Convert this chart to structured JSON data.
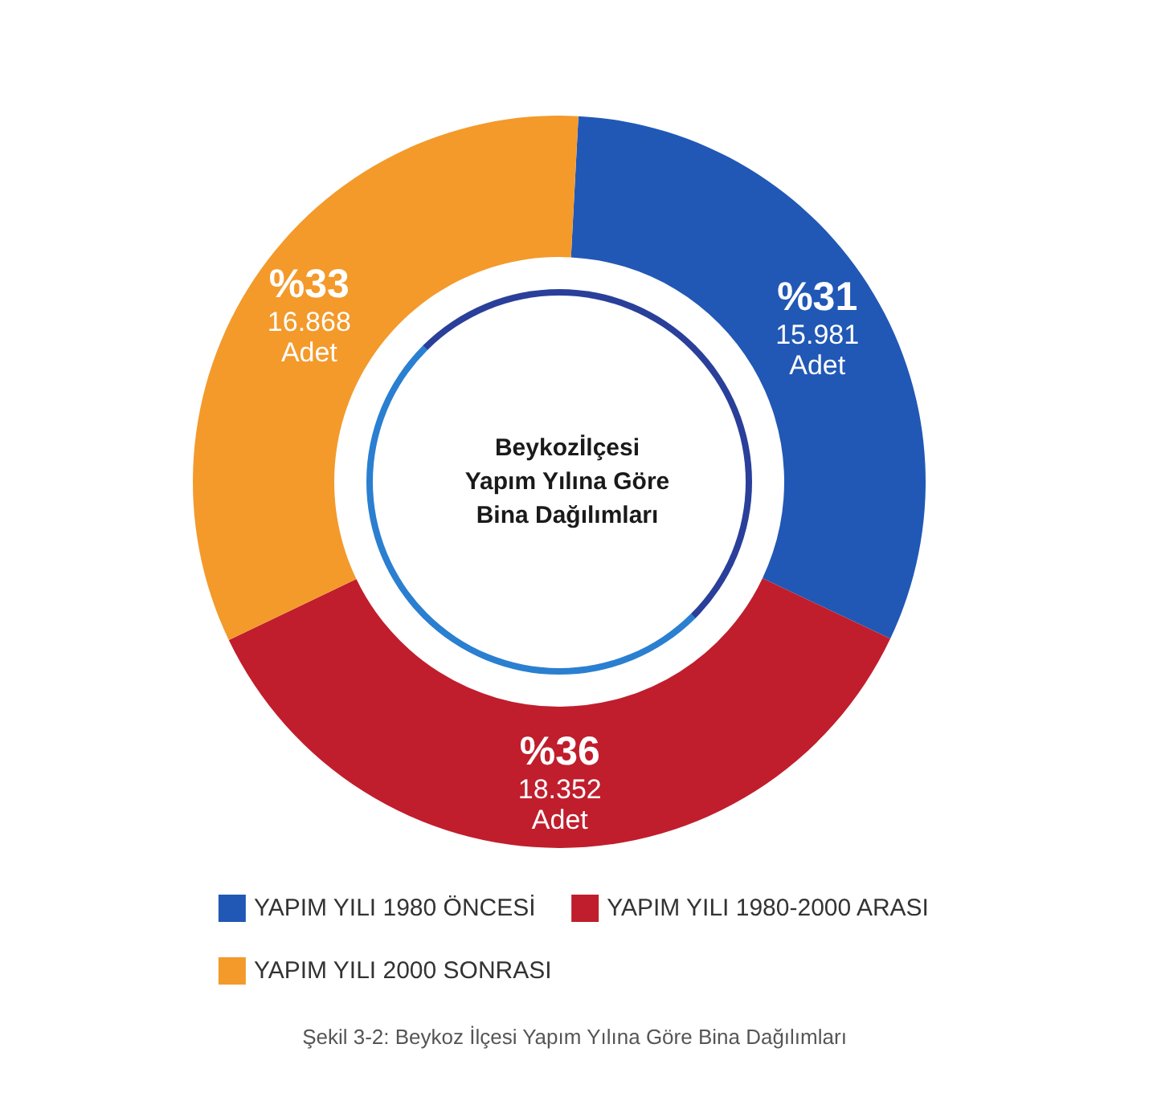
{
  "chart_data": {
    "type": "donut",
    "title": "Beykozİlçesi\nYapım Yılına Göre\nBina Dağılımları",
    "categories": [
      "YAPIM YILI 1980 ÖNCESİ",
      "YAPIM YILI 1980-2000 ARASI",
      "YAPIM YILI 2000 SONRASI"
    ],
    "values": [
      15981,
      18352,
      16868
    ],
    "colors": [
      "#2158b6",
      "#c01e2d",
      "#f39a2b"
    ],
    "value_labels": [
      "%31\n15.981\nAdet",
      "%36\n18.352\nAdet",
      "%33\n16.868\nAdet"
    ],
    "legend": "bottom",
    "annotations": [
      "Şekil 3-2: Beykoz İlçesi Yapım Yılına Göre Bina Dağılımları"
    ]
  }
}
